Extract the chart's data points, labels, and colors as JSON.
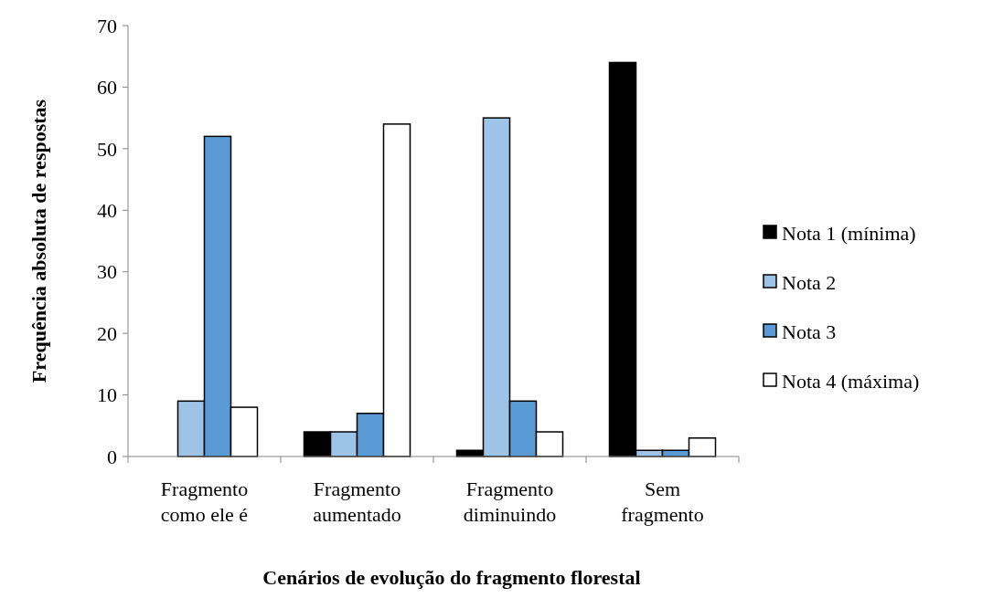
{
  "chart_data": {
    "type": "bar",
    "xlabel": "Cenários de evolução do fragmento florestal",
    "ylabel": "Frequência absoluta de respostas",
    "categories": [
      "Fragmento como ele é",
      "Fragmento aumentado",
      "Fragmento diminuindo",
      "Sem fragmento"
    ],
    "series": [
      {
        "name": "Nota 1 (mínima)",
        "color": "#000000",
        "values": [
          0,
          4,
          1,
          64
        ]
      },
      {
        "name": "Nota 2",
        "color": "#9dc3e6",
        "values": [
          9,
          4,
          55,
          1
        ]
      },
      {
        "name": "Nota 3",
        "color": "#5b9bd5",
        "values": [
          52,
          7,
          9,
          1
        ]
      },
      {
        "name": "Nota 4 (máxima)",
        "color": "#ffffff",
        "values": [
          8,
          54,
          4,
          3
        ]
      }
    ],
    "ylim": [
      0,
      70
    ],
    "yticks": [
      0,
      10,
      20,
      30,
      40,
      50,
      60,
      70
    ],
    "legend": "right"
  }
}
